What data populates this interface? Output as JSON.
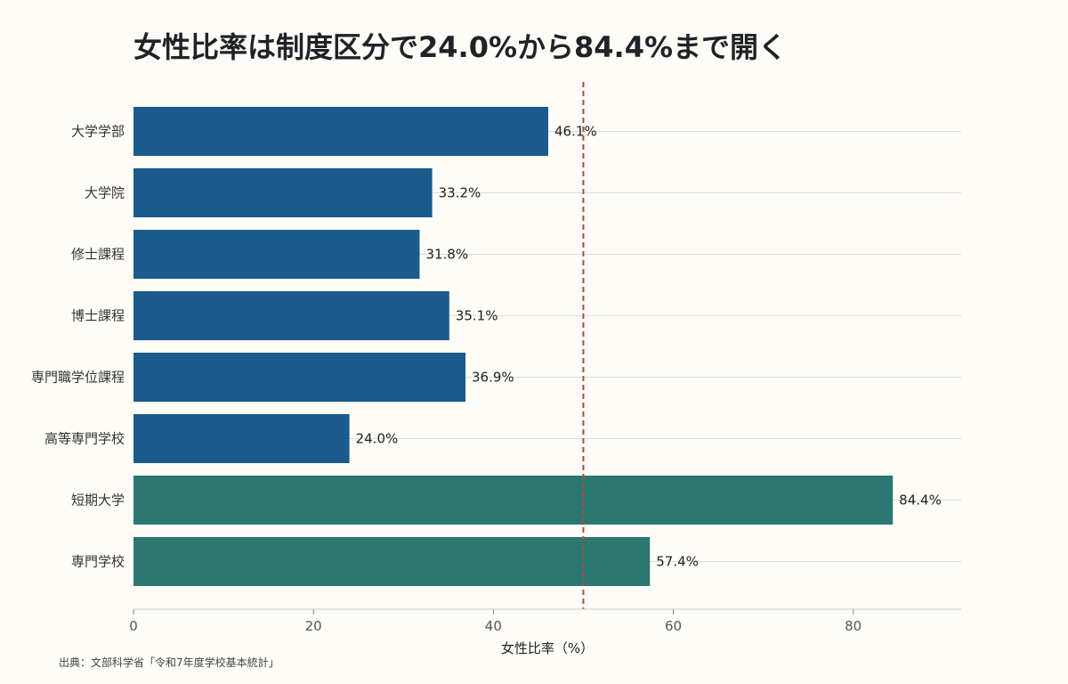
{
  "chart_data": {
    "type": "bar",
    "orientation": "horizontal",
    "title": "女性比率は制度区分で24.0%から84.4%まで開く",
    "xlabel": "女性比率（%）",
    "ylabel": "",
    "categories": [
      "大学学部",
      "大学院",
      "修士課程",
      "博士課程",
      "専門職学位課程",
      "高等専門学校",
      "短期大学",
      "専門学校"
    ],
    "values": [
      46.1,
      33.2,
      31.8,
      35.1,
      36.9,
      24.0,
      84.4,
      57.4
    ],
    "value_labels": [
      "46.1%",
      "33.2%",
      "31.8%",
      "35.1%",
      "36.9%",
      "24.0%",
      "84.4%",
      "57.4%"
    ],
    "bar_colors": [
      "#1a5a8c",
      "#1a5a8c",
      "#1a5a8c",
      "#1a5a8c",
      "#1a5a8c",
      "#1a5a8c",
      "#2a7870",
      "#2a7870"
    ],
    "xlim": [
      0,
      92
    ],
    "xticks": [
      0,
      20,
      40,
      60,
      80
    ],
    "reference_line": {
      "value": 50,
      "color": "#b24a3c",
      "style": "dashed"
    },
    "grid": "horizontal",
    "source": "出典：文部科学省「令和7年度学校基本統計」"
  }
}
